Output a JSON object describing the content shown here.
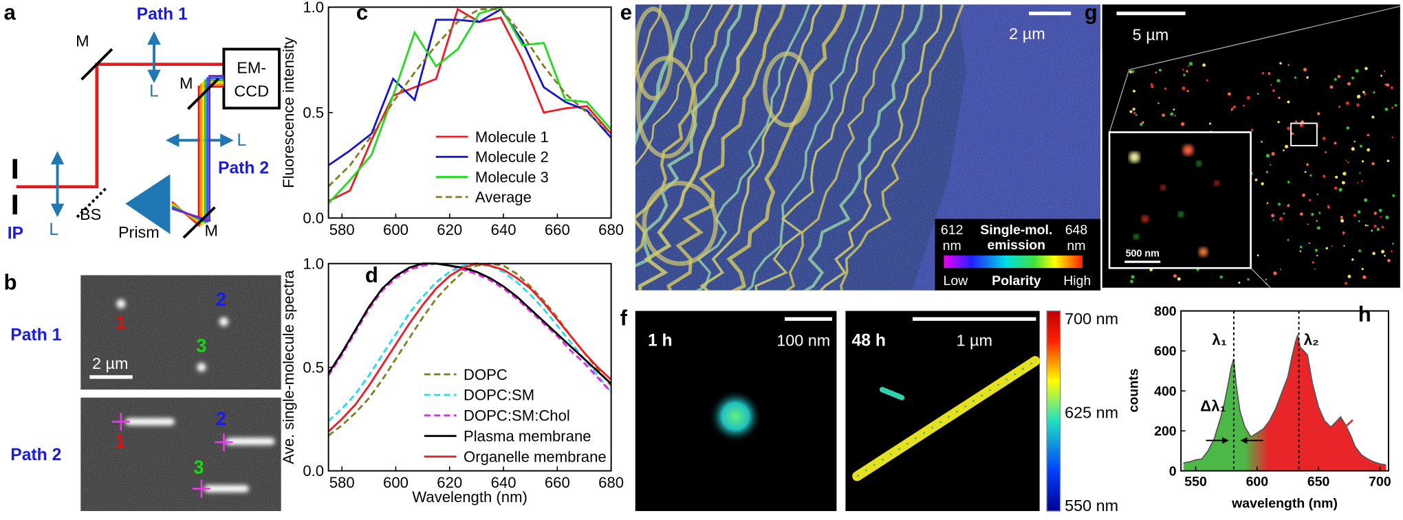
{
  "panels": {
    "a": {
      "label": "a",
      "path1": "Path 1",
      "path2": "Path 2",
      "mirrors": [
        "M",
        "M",
        "M"
      ],
      "lenses": [
        "L",
        "L",
        "L"
      ],
      "detector": [
        "EM-",
        "CCD"
      ],
      "beamsplitter": "BS",
      "prism": "Prism",
      "image_plane": "IP"
    },
    "b": {
      "label": "b",
      "rows": [
        "Path 1",
        "Path 2"
      ],
      "molecules": [
        "1",
        "2",
        "3"
      ],
      "scale_bar": "2 µm"
    },
    "e": {
      "label": "e",
      "scale_bar": "2 µm",
      "colorbar": {
        "min": [
          "612",
          "nm"
        ],
        "title": [
          "Single-mol.",
          "emission"
        ],
        "max": [
          "648",
          "nm"
        ],
        "low": "Low",
        "axis": "Polarity",
        "high": "High"
      }
    },
    "f": {
      "label": "f",
      "left": {
        "time": "1 h",
        "scale_bar": "100 nm"
      },
      "right": {
        "time": "48 h",
        "scale_bar": "1 µm"
      },
      "colorbar": [
        "700 nm",
        "625 nm",
        "550 nm"
      ]
    },
    "g": {
      "label": "g",
      "scale_bar": "5 µm",
      "inset_scale_bar": "500 nm"
    }
  },
  "chart_data": [
    {
      "type": "line",
      "label": "c",
      "y_label": "Fluorescence intensity",
      "x": [
        575,
        583,
        591,
        599,
        607,
        615,
        623,
        631,
        639,
        647,
        655,
        663,
        671,
        680
      ],
      "series": [
        {
          "name": "Molecule 1",
          "color": "#ee1c25",
          "style": "solid",
          "values": [
            0.08,
            0.13,
            0.37,
            0.58,
            0.62,
            0.66,
            0.99,
            0.93,
            0.95,
            0.75,
            0.5,
            0.52,
            0.53,
            0.4
          ]
        },
        {
          "name": "Molecule 2",
          "color": "#1515d0",
          "style": "solid",
          "values": [
            0.25,
            0.32,
            0.4,
            0.66,
            0.56,
            0.94,
            0.94,
            0.93,
            0.99,
            0.84,
            0.62,
            0.55,
            0.51,
            0.38
          ]
        },
        {
          "name": "Molecule 3",
          "color": "#22dd22",
          "style": "solid",
          "values": [
            0.07,
            0.18,
            0.3,
            0.58,
            0.88,
            0.72,
            0.8,
            0.97,
            1.0,
            0.82,
            0.83,
            0.56,
            0.55,
            0.42
          ]
        },
        {
          "name": "Average",
          "color": "#808020",
          "style": "dashed",
          "values": [
            0.15,
            0.25,
            0.39,
            0.55,
            0.69,
            0.82,
            0.93,
            0.99,
            0.99,
            0.87,
            0.72,
            0.59,
            0.5,
            0.4
          ]
        }
      ],
      "xlim": [
        575,
        680
      ],
      "ylim": [
        0,
        1
      ],
      "xticks": [
        580,
        600,
        620,
        640,
        660,
        680
      ],
      "yticks": [
        {
          "value": 0,
          "label": "0.0"
        },
        0.5,
        {
          "value": 1,
          "label": "1.0"
        }
      ],
      "legend": "lower center"
    },
    {
      "type": "line",
      "label": "d",
      "x_label": "Wavelength (nm)",
      "y_label": "Ave. single-molecule spectra",
      "x": [
        575,
        580,
        585,
        590,
        595,
        600,
        605,
        610,
        615,
        620,
        625,
        630,
        635,
        640,
        645,
        650,
        655,
        660,
        665,
        670,
        675,
        680
      ],
      "series": [
        {
          "name": "DOPC",
          "color": "#808020",
          "style": "dashed",
          "values": [
            0.17,
            0.22,
            0.28,
            0.35,
            0.44,
            0.54,
            0.64,
            0.74,
            0.83,
            0.9,
            0.96,
            0.99,
            1.0,
            0.99,
            0.95,
            0.89,
            0.82,
            0.74,
            0.65,
            0.57,
            0.49,
            0.41
          ]
        },
        {
          "name": "DOPC:SM",
          "color": "#22dcf0",
          "style": "dashed",
          "values": [
            0.24,
            0.3,
            0.37,
            0.46,
            0.56,
            0.66,
            0.76,
            0.84,
            0.91,
            0.96,
            0.99,
            1.0,
            0.99,
            0.96,
            0.91,
            0.85,
            0.78,
            0.7,
            0.62,
            0.54,
            0.46,
            0.38
          ]
        },
        {
          "name": "DOPC:SM:Chol",
          "color": "#ee22ee",
          "style": "dashed",
          "values": [
            0.46,
            0.56,
            0.67,
            0.78,
            0.87,
            0.93,
            0.97,
            0.99,
            1.0,
            0.99,
            0.97,
            0.95,
            0.92,
            0.88,
            0.83,
            0.77,
            0.71,
            0.65,
            0.58,
            0.52,
            0.45,
            0.38
          ]
        },
        {
          "name": "Plasma membrane",
          "color": "#000000",
          "style": "solid",
          "values": [
            0.47,
            0.57,
            0.68,
            0.79,
            0.88,
            0.94,
            0.98,
            1.0,
            1.0,
            0.99,
            0.98,
            0.96,
            0.93,
            0.89,
            0.84,
            0.78,
            0.72,
            0.66,
            0.6,
            0.54,
            0.48,
            0.42
          ]
        },
        {
          "name": "Organelle membrane",
          "color": "#ee1c25",
          "style": "solid",
          "values": [
            0.19,
            0.25,
            0.32,
            0.41,
            0.51,
            0.61,
            0.71,
            0.8,
            0.88,
            0.94,
            0.98,
            1.0,
            0.99,
            0.97,
            0.93,
            0.88,
            0.81,
            0.73,
            0.65,
            0.57,
            0.5,
            0.44
          ]
        }
      ],
      "xlim": [
        575,
        680
      ],
      "ylim": [
        0,
        1
      ],
      "xticks": [
        580,
        600,
        620,
        640,
        660,
        680
      ],
      "yticks": [
        {
          "value": 0,
          "label": "0.0"
        },
        0.5,
        {
          "value": 1,
          "label": "1.0"
        }
      ],
      "legend": "lower center"
    },
    {
      "type": "area",
      "label": "h",
      "x_label": "wavelength (nm)",
      "y_label": "counts",
      "x": [
        540,
        545,
        550,
        555,
        560,
        565,
        570,
        573,
        576,
        579,
        581,
        583,
        586,
        590,
        595,
        600,
        605,
        610,
        615,
        620,
        625,
        628,
        631,
        633,
        635,
        638,
        641,
        645,
        650,
        655,
        660,
        665,
        668,
        672,
        676,
        680,
        685,
        690,
        695,
        700,
        705
      ],
      "values": [
        40,
        45,
        55,
        60,
        100,
        160,
        260,
        330,
        420,
        520,
        560,
        430,
        300,
        220,
        170,
        190,
        210,
        250,
        310,
        390,
        470,
        560,
        640,
        680,
        620,
        600,
        580,
        440,
        320,
        250,
        220,
        250,
        270,
        230,
        180,
        120,
        80,
        60,
        45,
        35,
        30
      ],
      "colors": [
        "#4cb848",
        "#e8262a"
      ],
      "xlim": [
        538,
        707
      ],
      "ylim": [
        0,
        800
      ],
      "xticks": [
        550,
        600,
        650,
        700
      ],
      "yticks": [
        0,
        200,
        400,
        600,
        800
      ],
      "markers": [
        {
          "label": "λ₁",
          "value": 581
        },
        {
          "label": "λ₂",
          "value": 634
        }
      ],
      "width_label": "Δλ₁"
    }
  ]
}
